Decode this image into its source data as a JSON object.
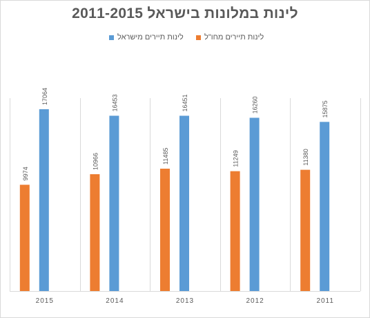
{
  "colors": {
    "domestic": "#5b9bd5",
    "foreign": "#ed7d31",
    "grid": "#d9d9d9",
    "text": "#595959"
  },
  "chart_data": {
    "type": "bar",
    "title": "לינות במלונות בישראל 2011-2015",
    "xlabel": "",
    "ylabel": "",
    "ylim": [
      0,
      18000
    ],
    "categories": [
      "2015",
      "2014",
      "2013",
      "2012",
      "2011"
    ],
    "series": [
      {
        "name": "לינות תיירים מחו\"ל",
        "color": "#ed7d31",
        "values": [
          9974,
          10966,
          11485,
          11249,
          11380
        ]
      },
      {
        "name": "לינות תיירים מישראל",
        "color": "#5b9bd5",
        "values": [
          17064,
          16453,
          16451,
          16260,
          15875
        ]
      }
    ],
    "legend_position": "top",
    "grid": "vertical category separators",
    "data_labels": true
  }
}
